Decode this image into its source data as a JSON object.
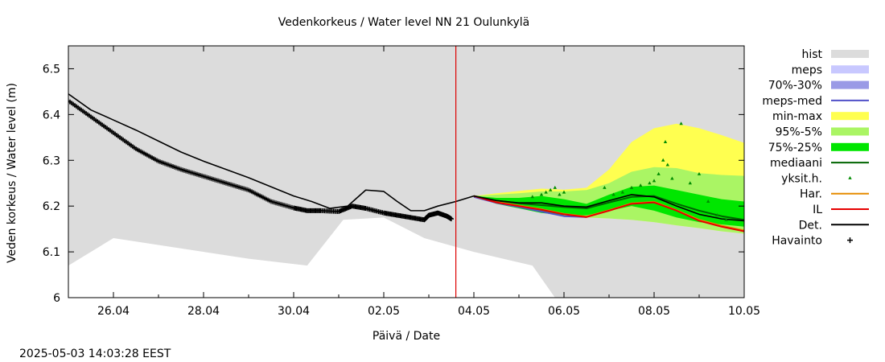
{
  "chart_data": {
    "type": "line",
    "title": "Vedenkorkeus / Water level   NN 21 Oulunkylä",
    "xlabel": "Päivä / Date",
    "ylabel": "Veden korkeus / Water level (m)",
    "timestamp": "2025-05-03 14:03:28 EEST",
    "x_range_days": [
      0,
      15
    ],
    "x_tick_labels": [
      "26.04",
      "28.04",
      "30.04",
      "02.05",
      "04.05",
      "06.05",
      "08.05",
      "10.05"
    ],
    "x_tick_days": [
      1,
      3,
      5,
      7,
      9,
      11,
      13,
      15
    ],
    "ylim": [
      6.0,
      6.55
    ],
    "y_ticks": [
      6.0,
      6.1,
      6.2,
      6.3,
      6.4,
      6.5
    ],
    "y_tick_labels": [
      "6",
      "6.1",
      "6.2",
      "6.3",
      "6.4",
      "6.5"
    ],
    "forecast_start_day": 8.6,
    "colors": {
      "hist": "#dcdcdc",
      "meps": "#c8c8ff",
      "p70_30": "#9a9ae6",
      "meps_med": "#5050c8",
      "min_max": "#ffff50",
      "p95_5": "#aaf564",
      "p75_25": "#00e600",
      "mediaani": "#006400",
      "yksit": "#008c00",
      "har": "#e68c00",
      "il": "#e60000",
      "det": "#000000",
      "havainto": "#000000",
      "now_line": "#dc0000"
    },
    "legend": [
      {
        "key": "hist",
        "label": "hist",
        "kind": "fill"
      },
      {
        "key": "meps",
        "label": "meps",
        "kind": "fill"
      },
      {
        "key": "p70_30",
        "label": "70%-30%",
        "kind": "fill"
      },
      {
        "key": "meps_med",
        "label": "meps-med",
        "kind": "line"
      },
      {
        "key": "min_max",
        "label": "min-max",
        "kind": "fill"
      },
      {
        "key": "p95_5",
        "label": "95%-5%",
        "kind": "fill"
      },
      {
        "key": "p75_25",
        "label": "75%-25%",
        "kind": "fill"
      },
      {
        "key": "mediaani",
        "label": "mediaani",
        "kind": "line"
      },
      {
        "key": "yksit",
        "label": "yksit.h.",
        "kind": "dot"
      },
      {
        "key": "har",
        "label": "Har.",
        "kind": "line"
      },
      {
        "key": "il",
        "label": "IL",
        "kind": "line"
      },
      {
        "key": "det",
        "label": "Det.",
        "kind": "line"
      },
      {
        "key": "havainto",
        "label": "Havainto",
        "kind": "plus"
      }
    ],
    "hist_lower": {
      "x": [
        0,
        1,
        4,
        5.3,
        6.1,
        7,
        7.9,
        9,
        10.3,
        10.8,
        15
      ],
      "y": [
        6.07,
        6.13,
        6.085,
        6.07,
        6.17,
        6.175,
        6.13,
        6.1,
        6.07,
        6.0,
        6.0
      ]
    },
    "observed": {
      "x": [
        0,
        0.5,
        1,
        1.5,
        2,
        2.5,
        3,
        3.5,
        4,
        4.5,
        5,
        5.3,
        5.6,
        6,
        6.3,
        6.6,
        7,
        7.3,
        7.6,
        7.9,
        8,
        8.2,
        8.4,
        8.5
      ],
      "y": [
        6.43,
        6.395,
        6.36,
        6.325,
        6.298,
        6.28,
        6.265,
        6.25,
        6.235,
        6.21,
        6.196,
        6.19,
        6.19,
        6.188,
        6.2,
        6.195,
        6.185,
        6.18,
        6.175,
        6.17,
        6.18,
        6.185,
        6.178,
        6.172
      ]
    },
    "det": {
      "x": [
        0,
        0.5,
        1,
        1.5,
        2,
        2.5,
        3,
        3.5,
        4,
        4.5,
        5,
        5.4,
        5.8,
        6.2,
        6.6,
        7,
        7.3,
        7.6,
        7.9,
        8.2,
        8.6,
        9,
        9.5,
        10,
        10.5,
        11,
        11.5,
        12,
        12.5,
        13,
        13.5,
        14,
        14.5,
        15
      ],
      "y": [
        6.445,
        6.41,
        6.388,
        6.366,
        6.342,
        6.318,
        6.298,
        6.28,
        6.262,
        6.242,
        6.222,
        6.21,
        6.195,
        6.2,
        6.235,
        6.232,
        6.21,
        6.19,
        6.19,
        6.2,
        6.21,
        6.222,
        6.212,
        6.207,
        6.207,
        6.2,
        6.198,
        6.212,
        6.225,
        6.22,
        6.2,
        6.182,
        6.172,
        6.168
      ]
    },
    "min_max": {
      "x": [
        9,
        9.5,
        10,
        10.5,
        11,
        11.5,
        12,
        12.5,
        13,
        13.5,
        14,
        14.5,
        15
      ],
      "upper": [
        6.222,
        6.228,
        6.233,
        6.238,
        6.236,
        6.24,
        6.28,
        6.34,
        6.37,
        6.38,
        6.37,
        6.355,
        6.338
      ],
      "lower": [
        6.222,
        6.21,
        6.2,
        6.19,
        6.18,
        6.175,
        6.173,
        6.17,
        6.165,
        6.158,
        6.152,
        6.145,
        6.14
      ]
    },
    "p95_5": {
      "x": [
        9,
        9.5,
        10,
        10.5,
        11,
        11.5,
        12,
        12.5,
        13,
        13.5,
        14,
        14.5,
        15
      ],
      "upper": [
        6.222,
        6.225,
        6.228,
        6.232,
        6.232,
        6.235,
        6.25,
        6.275,
        6.285,
        6.283,
        6.272,
        6.268,
        6.266
      ]
    },
    "p75_25": {
      "x": [
        9,
        9.5,
        10,
        10.5,
        11,
        11.5,
        12,
        12.5,
        13,
        13.5,
        14,
        14.5,
        15
      ],
      "upper": [
        6.222,
        6.218,
        6.218,
        6.222,
        6.215,
        6.205,
        6.225,
        6.242,
        6.245,
        6.235,
        6.225,
        6.215,
        6.21
      ],
      "lower": [
        6.222,
        6.205,
        6.195,
        6.185,
        6.18,
        6.18,
        6.19,
        6.2,
        6.19,
        6.175,
        6.165,
        6.16,
        6.155
      ]
    },
    "mediaani": {
      "x": [
        9,
        9.5,
        10,
        10.5,
        11,
        11.5,
        12,
        12.5,
        13,
        13.5,
        14,
        14.5,
        15
      ],
      "y": [
        6.222,
        6.212,
        6.206,
        6.202,
        6.198,
        6.195,
        6.208,
        6.22,
        6.222,
        6.205,
        6.19,
        6.178,
        6.17
      ]
    },
    "meps_med": {
      "x": [
        9,
        9.5,
        10,
        10.5,
        11,
        11.5
      ],
      "y": [
        6.22,
        6.207,
        6.198,
        6.188,
        6.178,
        6.176
      ]
    },
    "il": {
      "x": [
        9,
        9.5,
        10,
        10.5,
        11,
        11.5,
        12,
        12.5,
        13,
        13.5,
        14,
        14.5,
        15
      ],
      "y": [
        6.222,
        6.208,
        6.2,
        6.192,
        6.182,
        6.176,
        6.19,
        6.205,
        6.208,
        6.19,
        6.168,
        6.155,
        6.145
      ]
    },
    "har": {
      "x": [
        9,
        9.5,
        10,
        10.5,
        11,
        11.5,
        12,
        12.5,
        13,
        13.5,
        14,
        14.5,
        15
      ],
      "y": [
        6.222,
        6.209,
        6.201,
        6.193,
        6.183,
        6.177,
        6.191,
        6.206,
        6.209,
        6.191,
        6.17,
        6.157,
        6.147
      ]
    },
    "yksit": {
      "x": [
        10.3,
        10.5,
        10.6,
        10.7,
        10.8,
        10.9,
        11.0,
        11.9,
        12.1,
        12.3,
        12.5,
        12.7,
        12.9,
        13.0,
        13.1,
        13.2,
        13.25,
        13.3,
        13.4,
        13.6,
        13.8,
        14.0,
        14.2,
        14.4,
        14.6
      ],
      "y": [
        6.22,
        6.225,
        6.23,
        6.235,
        6.24,
        6.225,
        6.23,
        6.24,
        6.225,
        6.23,
        6.24,
        6.245,
        6.25,
        6.255,
        6.27,
        6.3,
        6.34,
        6.29,
        6.26,
        6.38,
        6.25,
        6.27,
        6.21,
        6.18,
        6.17
      ]
    }
  }
}
